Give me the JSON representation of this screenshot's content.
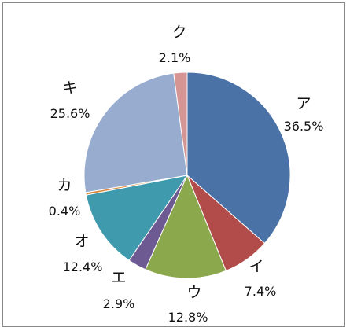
{
  "chart_data": {
    "type": "pie",
    "title": "",
    "slices": [
      {
        "label": "ア",
        "value": 36.5,
        "pct_text": "36.5%",
        "color": "#4a72a6"
      },
      {
        "label": "イ",
        "value": 7.4,
        "pct_text": "7.4%",
        "color": "#b24c4a"
      },
      {
        "label": "ウ",
        "value": 12.8,
        "pct_text": "12.8%",
        "color": "#8ca84c"
      },
      {
        "label": "エ",
        "value": 2.9,
        "pct_text": "2.9%",
        "color": "#6e5a92"
      },
      {
        "label": "オ",
        "value": 12.4,
        "pct_text": "12.4%",
        "color": "#3f9aad"
      },
      {
        "label": "カ",
        "value": 0.4,
        "pct_text": "0.4%",
        "color": "#db8a3c"
      },
      {
        "label": "キ",
        "value": 25.6,
        "pct_text": "25.6%",
        "color": "#98accf"
      },
      {
        "label": "ク",
        "value": 2.1,
        "pct_text": "2.1%",
        "color": "#d49593"
      }
    ],
    "start_angle": "12 o'clock",
    "direction": "clockwise",
    "data_labels": "outside",
    "legend": "none"
  }
}
